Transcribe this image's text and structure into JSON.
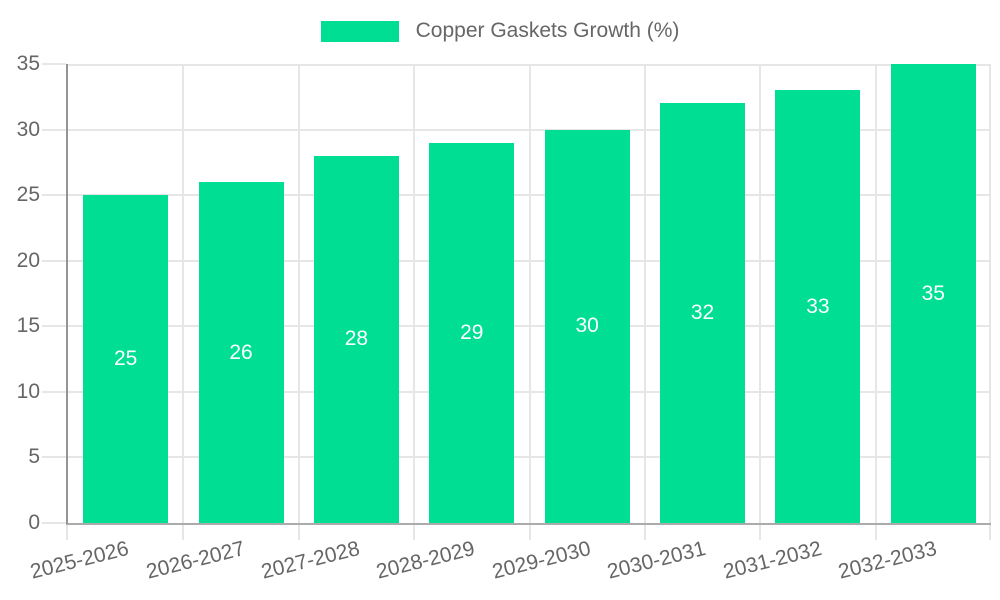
{
  "chart_data": {
    "type": "bar",
    "title": "Copper Gaskets Growth (%)",
    "categories": [
      "2025-2026",
      "2026-2027",
      "2027-2028",
      "2028-2029",
      "2029-2030",
      "2030-2031",
      "2031-2032",
      "2032-2033"
    ],
    "series": [
      {
        "name": "Copper Gaskets Growth (%)",
        "values": [
          25,
          26,
          28,
          29,
          30,
          32,
          33,
          35
        ]
      }
    ],
    "data_labels": [
      "25",
      "26",
      "28",
      "29",
      "30",
      "32",
      "33",
      "35"
    ],
    "y_tick_labels": [
      "0",
      "5",
      "10",
      "15",
      "20",
      "25",
      "30",
      "35"
    ],
    "xlabel": "",
    "ylabel": "",
    "ylim": [
      0,
      35
    ],
    "ytick_step": 5,
    "grid": "on",
    "legend_position": "top-center",
    "colors": {
      "bar": "#00DE94",
      "data_label": "#ffffff",
      "axis_text": "#666666",
      "grid_line": "#e6e6e6",
      "axis_line": "#9e9e9e",
      "background": "#ffffff"
    }
  }
}
